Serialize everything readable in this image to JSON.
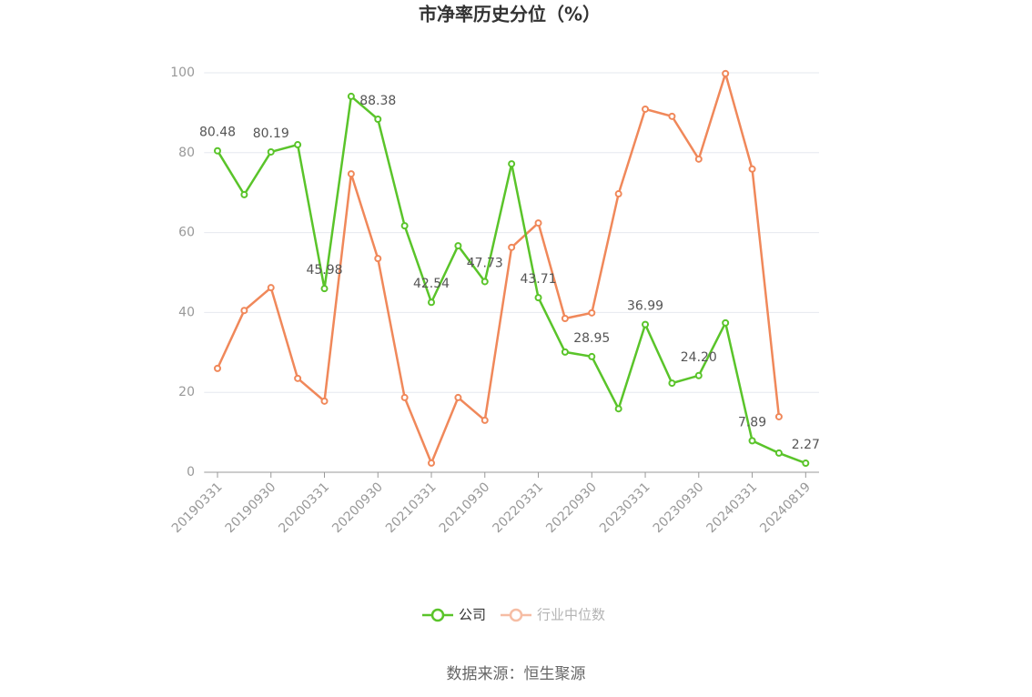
{
  "chart_data": {
    "type": "line",
    "title": "市净率历史分位（%）",
    "categories": [
      "20190331",
      null,
      "20190930",
      null,
      "20200331",
      null,
      "20200930",
      null,
      "20210331",
      null,
      "20210930",
      null,
      "20220331",
      null,
      "20220930",
      null,
      "20230331",
      null,
      "20230930",
      null,
      "20240331",
      null,
      "20240819"
    ],
    "series": [
      {
        "name": "公司",
        "color": "#5ac42a",
        "values": [
          80.48,
          69.5,
          80.19,
          82.0,
          45.98,
          94.1,
          88.38,
          61.7,
          42.54,
          56.7,
          47.73,
          77.2,
          43.71,
          30.1,
          28.95,
          15.9,
          36.99,
          22.3,
          24.2,
          37.4,
          7.89,
          4.8,
          2.27
        ],
        "value_labels": [
          "80.48",
          null,
          "80.19",
          null,
          "45.98",
          null,
          "88.38",
          null,
          "42.54",
          null,
          "47.73",
          null,
          "43.71",
          null,
          "28.95",
          null,
          "36.99",
          null,
          "24.20",
          null,
          "7.89",
          null,
          "2.27"
        ]
      },
      {
        "name": "行业中位数",
        "color": "#f0885a",
        "values": [
          26.0,
          40.5,
          46.2,
          23.5,
          17.8,
          74.7,
          53.5,
          18.7,
          2.3,
          18.7,
          13.0,
          56.3,
          62.4,
          38.5,
          39.9,
          69.7,
          90.9,
          89.1,
          78.4,
          99.8,
          75.9,
          13.9,
          null
        ]
      }
    ],
    "ylim": [
      0,
      100
    ],
    "yticks": [
      0,
      20,
      40,
      60,
      80,
      100
    ],
    "grid": true,
    "source": "数据来源：恒生聚源"
  }
}
